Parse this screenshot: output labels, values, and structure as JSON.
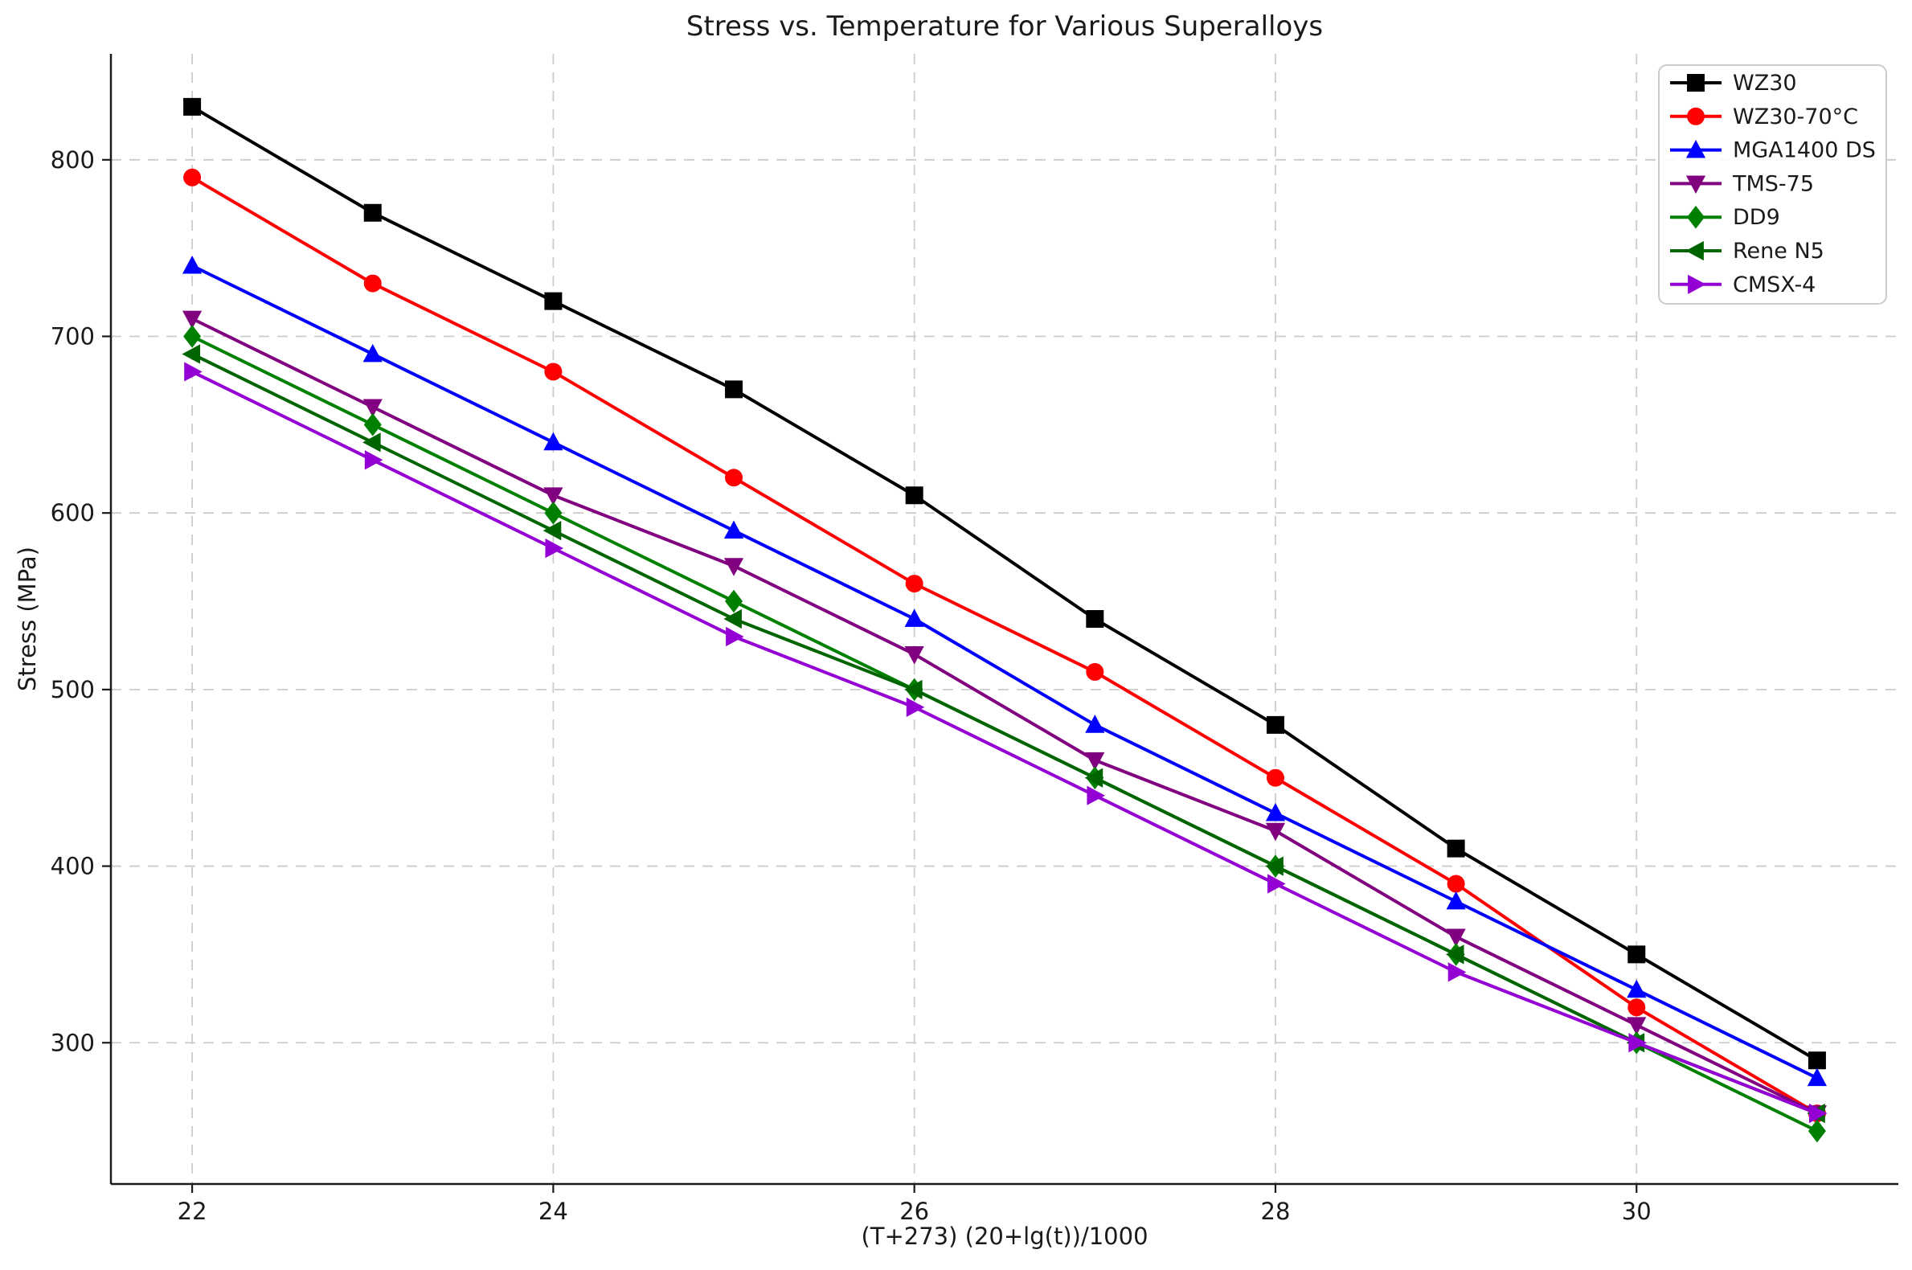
{
  "chart_data": {
    "type": "line",
    "title": "Stress vs. Temperature for Various Superalloys",
    "xlabel": "(T+273) (20+lg(t))/1000",
    "ylabel": "Stress (MPa)",
    "x": [
      22,
      23,
      24,
      25,
      26,
      27,
      28,
      29,
      30,
      31
    ],
    "xlim": [
      21.55,
      31.45
    ],
    "ylim": [
      220,
      860
    ],
    "xticks": [
      22,
      24,
      26,
      28,
      30
    ],
    "yticks": [
      300,
      400,
      500,
      600,
      700,
      800
    ],
    "grid": true,
    "grid_color": "#cccccc",
    "spine_color": "#1a1a1a",
    "legend_position": "upper right",
    "legend_border_color": "#cccccc",
    "series": [
      {
        "name": "WZ30",
        "color": "#000000",
        "marker": "square",
        "values": [
          830,
          770,
          720,
          670,
          610,
          540,
          480,
          410,
          350,
          290
        ]
      },
      {
        "name": "WZ30-70°C",
        "color": "#ff0000",
        "marker": "circle",
        "values": [
          790,
          730,
          680,
          620,
          560,
          510,
          450,
          390,
          320,
          260
        ]
      },
      {
        "name": "MGA1400 DS",
        "color": "#0000ff",
        "marker": "triangle-up",
        "values": [
          740,
          690,
          640,
          590,
          540,
          480,
          430,
          380,
          330,
          280
        ]
      },
      {
        "name": "TMS-75",
        "color": "#800080",
        "marker": "triangle-down",
        "values": [
          710,
          660,
          610,
          570,
          520,
          460,
          420,
          360,
          310,
          260
        ]
      },
      {
        "name": "DD9",
        "color": "#008000",
        "marker": "diamond",
        "values": [
          700,
          650,
          600,
          550,
          500,
          450,
          400,
          350,
          300,
          250
        ]
      },
      {
        "name": "Rene N5",
        "color": "#006400",
        "marker": "triangle-left",
        "values": [
          690,
          640,
          590,
          540,
          500,
          450,
          400,
          350,
          300,
          260
        ]
      },
      {
        "name": "CMSX-4",
        "color": "#9400d3",
        "marker": "triangle-right",
        "values": [
          680,
          630,
          580,
          530,
          490,
          440,
          390,
          340,
          300,
          260
        ]
      }
    ]
  }
}
